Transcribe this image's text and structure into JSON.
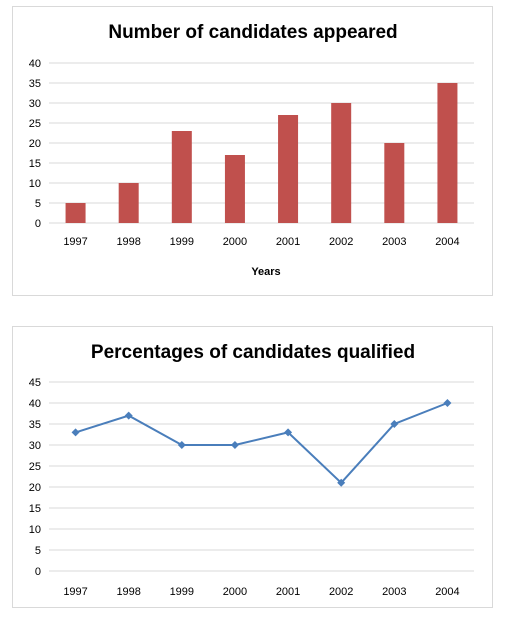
{
  "chart_data": [
    {
      "type": "bar",
      "title": "Number of candidates appeared",
      "xlabel": "Years",
      "ylabel": "",
      "categories": [
        "1997",
        "1998",
        "1999",
        "2000",
        "2001",
        "2002",
        "2003",
        "2004"
      ],
      "values": [
        5,
        10,
        23,
        17,
        27,
        30,
        20,
        35
      ],
      "ylim": [
        0,
        40
      ],
      "yticks": [
        0,
        5,
        10,
        15,
        20,
        25,
        30,
        35,
        40
      ],
      "grid": true,
      "legend": "none",
      "color": "#c0504d"
    },
    {
      "type": "line",
      "title": "Percentages of candidates qualified",
      "xlabel": "",
      "ylabel": "",
      "categories": [
        "1997",
        "1998",
        "1999",
        "2000",
        "2001",
        "2002",
        "2003",
        "2004"
      ],
      "values": [
        33,
        37,
        30,
        30,
        33,
        21,
        35,
        40
      ],
      "ylim": [
        0,
        45
      ],
      "yticks": [
        0,
        5,
        10,
        15,
        20,
        25,
        30,
        35,
        40,
        45
      ],
      "grid": true,
      "legend": "none",
      "color": "#4a7ebb"
    }
  ]
}
